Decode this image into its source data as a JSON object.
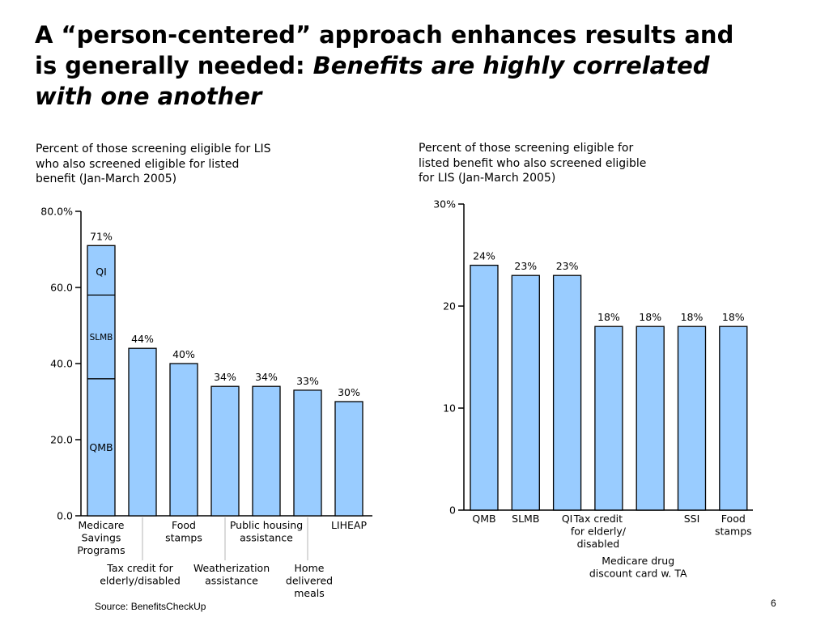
{
  "title": {
    "line_plain": "A “person-centered” approach enhances results and is generally needed: ",
    "line_emphasis": "Benefits are highly correlated with one another"
  },
  "source": "Source: BenefitsCheckUp",
  "page_number": "6",
  "colors": {
    "bar_fill": "#99ccff",
    "bar_stroke": "#000000"
  },
  "chart_data": [
    {
      "type": "bar",
      "title": "Percent of those screening eligible for LIS who also screened eligible for listed benefit (Jan-March 2005)",
      "ylim": [
        0,
        80
      ],
      "yticks": [
        0,
        20,
        40,
        60,
        80
      ],
      "ytick_labels": [
        "0.0",
        "20.0",
        "40.0",
        "60.0",
        "80.0%"
      ],
      "grid": false,
      "categories": [
        "Medicare Savings Programs",
        "Tax credit for elderly/disabled",
        "Food stamps",
        "Weatherization assistance",
        "Public housing assistance",
        "Home delivered meals",
        "LIHEAP"
      ],
      "category_labels": [
        [
          "Medicare",
          "Savings",
          "Programs"
        ],
        [
          "Tax credit for",
          "elderly/disabled"
        ],
        [
          "Food",
          "stamps"
        ],
        [
          "Weatherization",
          "assistance"
        ],
        [
          "Public housing",
          "assistance"
        ],
        [
          "Home",
          "delivered",
          "meals"
        ],
        [
          "LIHEAP"
        ]
      ],
      "values": [
        71,
        44,
        40,
        34,
        34,
        33,
        30
      ],
      "value_labels": [
        "71%",
        "44%",
        "40%",
        "34%",
        "34%",
        "33%",
        "30%"
      ],
      "stacked_first_bar": {
        "segments": [
          {
            "name": "QMB",
            "value": 36
          },
          {
            "name": "SLMB",
            "value": 22
          },
          {
            "name": "QI",
            "value": 13
          }
        ]
      }
    },
    {
      "type": "bar",
      "title": "Percent of those screening eligible for listed benefit who also screened eligible for LIS (Jan-March 2005)",
      "ylim": [
        0,
        30
      ],
      "yticks": [
        0,
        10,
        20,
        30
      ],
      "ytick_labels": [
        "0",
        "10",
        "20",
        "30%"
      ],
      "grid": false,
      "categories": [
        "QMB",
        "SLMB",
        "QI",
        "Tax credit for elderly/ disabled",
        "Medicare drug discount card w. TA",
        "SSI",
        "Food stamps"
      ],
      "category_labels": [
        [
          "QMB"
        ],
        [
          "SLMB"
        ],
        [
          "QI"
        ],
        [
          "Tax credit",
          "for elderly/",
          "disabled"
        ],
        [
          "Medicare drug",
          "discount card w. TA"
        ],
        [
          "SSI"
        ],
        [
          "Food",
          "stamps"
        ]
      ],
      "values": [
        24,
        23,
        23,
        18,
        18,
        18,
        18
      ],
      "value_labels": [
        "24%",
        "23%",
        "23%",
        "18%",
        "18%",
        "18%",
        "18%"
      ]
    }
  ]
}
